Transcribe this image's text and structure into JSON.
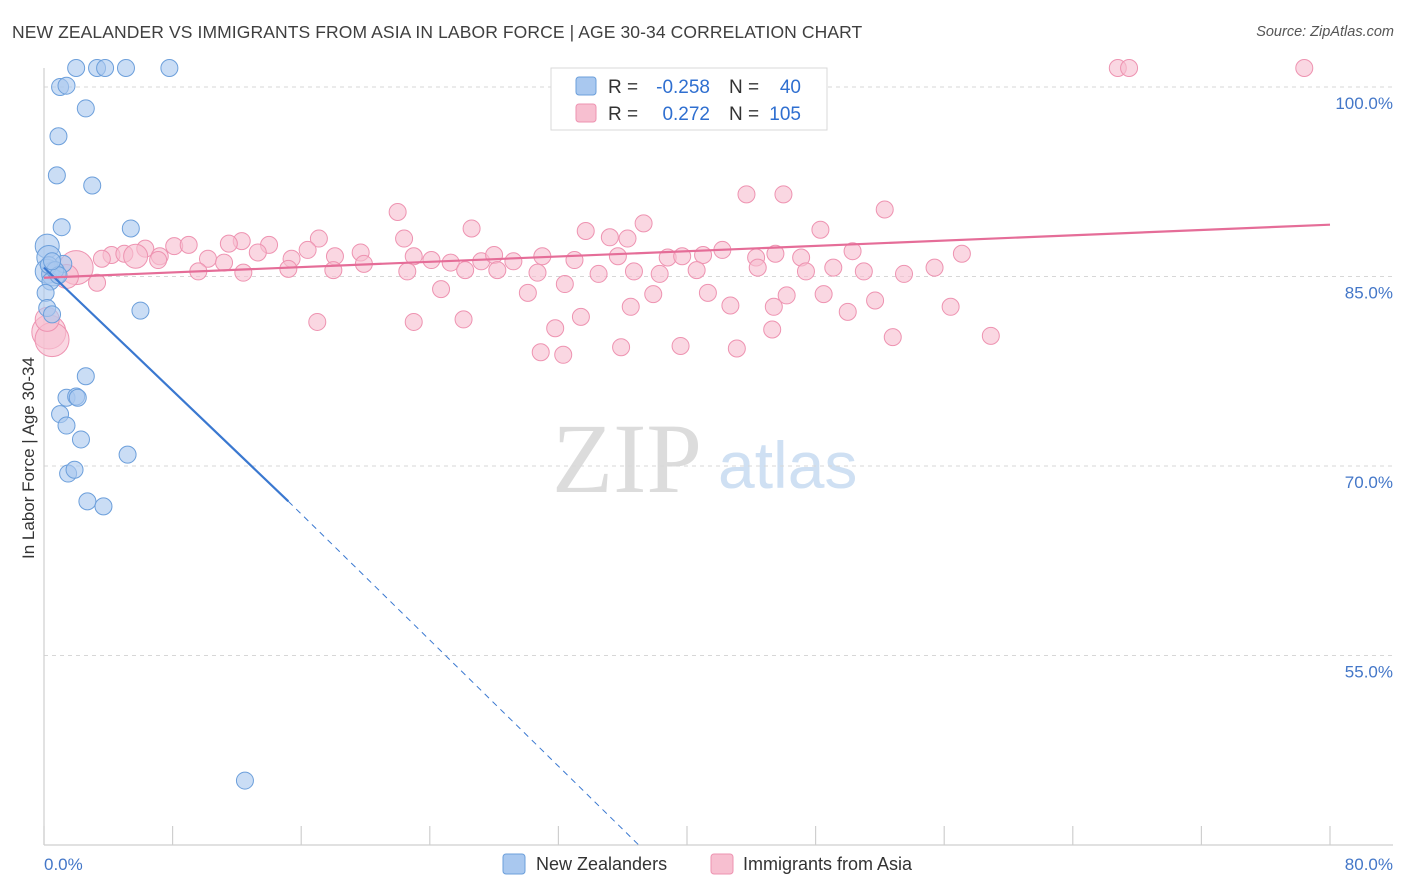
{
  "header": {
    "title": "NEW ZEALANDER VS IMMIGRANTS FROM ASIA IN LABOR FORCE | AGE 30-34 CORRELATION CHART",
    "source": "Source: ZipAtlas.com"
  },
  "watermark": {
    "zip": "ZIP",
    "atlas": "atlas"
  },
  "legend": {
    "rows": [
      {
        "r_label": "R =",
        "r_value": "-0.258",
        "n_label": "N =",
        "n_value": "40"
      },
      {
        "r_label": "R =",
        "r_value": "0.272",
        "n_label": "N =",
        "n_value": "105"
      }
    ]
  },
  "bottom_legend": {
    "series_0": "New Zealanders",
    "series_1": "Immigrants from Asia"
  },
  "colors": {
    "blue_fill": "#a9c8ef",
    "blue_stroke": "#6c9fdb",
    "blue_line": "#3a78d0",
    "pink_fill": "#f7bfd0",
    "pink_stroke": "#ee93b1",
    "pink_line": "#e56d98",
    "grid": "#d7d7d7",
    "tick_label": "#4477c8"
  },
  "chart_data": {
    "type": "scatter",
    "title": "NEW ZEALANDER VS IMMIGRANTS FROM ASIA IN LABOR FORCE | AGE 30-34 CORRELATION CHART",
    "xlabel": "",
    "ylabel": "In Labor Force | Age 30-34",
    "xlim": [
      0,
      80
    ],
    "ylim": [
      40,
      101.5
    ],
    "x_tick_labels": [
      "0.0%",
      "80.0%"
    ],
    "y_ticks": [
      {
        "value": 55,
        "label": "55.0%"
      },
      {
        "value": 70,
        "label": "70.0%"
      },
      {
        "value": 85,
        "label": "85.0%"
      },
      {
        "value": 100,
        "label": "100.0%"
      }
    ],
    "grid": true,
    "legend_position": "top-center",
    "series": [
      {
        "name": "New Zealanders",
        "r": -0.258,
        "n": 40,
        "trend": {
          "x0": 0,
          "y0": 85.7,
          "x1": 15.2,
          "y1": 67.2,
          "dashed_to_x": 37.0,
          "dashed_to_y": 40.0
        },
        "points": [
          {
            "x": 2.0,
            "y": 101.5,
            "s": 1
          },
          {
            "x": 3.3,
            "y": 101.5,
            "s": 1
          },
          {
            "x": 3.8,
            "y": 101.5,
            "s": 1
          },
          {
            "x": 5.1,
            "y": 101.5,
            "s": 1
          },
          {
            "x": 7.8,
            "y": 101.5,
            "s": 1
          },
          {
            "x": 1.0,
            "y": 100.0,
            "s": 1
          },
          {
            "x": 1.4,
            "y": 100.1,
            "s": 1
          },
          {
            "x": 2.6,
            "y": 98.3,
            "s": 1
          },
          {
            "x": 0.9,
            "y": 96.1,
            "s": 1
          },
          {
            "x": 0.8,
            "y": 93.0,
            "s": 1
          },
          {
            "x": 3.0,
            "y": 92.2,
            "s": 1
          },
          {
            "x": 1.1,
            "y": 88.9,
            "s": 1
          },
          {
            "x": 5.4,
            "y": 88.8,
            "s": 1
          },
          {
            "x": 0.2,
            "y": 87.4,
            "s": 2
          },
          {
            "x": 0.3,
            "y": 86.5,
            "s": 2
          },
          {
            "x": 0.2,
            "y": 85.4,
            "s": 2
          },
          {
            "x": 0.6,
            "y": 85.2,
            "s": 2
          },
          {
            "x": 1.2,
            "y": 86.0,
            "s": 1
          },
          {
            "x": 0.4,
            "y": 84.6,
            "s": 1
          },
          {
            "x": 0.1,
            "y": 83.7,
            "s": 1
          },
          {
            "x": 0.2,
            "y": 82.5,
            "s": 1
          },
          {
            "x": 0.5,
            "y": 82.0,
            "s": 1
          },
          {
            "x": 6.0,
            "y": 82.3,
            "s": 1
          },
          {
            "x": 2.6,
            "y": 77.1,
            "s": 1
          },
          {
            "x": 1.4,
            "y": 75.4,
            "s": 1
          },
          {
            "x": 2.0,
            "y": 75.5,
            "s": 1
          },
          {
            "x": 2.1,
            "y": 75.4,
            "s": 1
          },
          {
            "x": 1.0,
            "y": 74.1,
            "s": 1
          },
          {
            "x": 1.4,
            "y": 73.2,
            "s": 1
          },
          {
            "x": 2.3,
            "y": 72.1,
            "s": 1
          },
          {
            "x": 5.2,
            "y": 70.9,
            "s": 1
          },
          {
            "x": 1.5,
            "y": 69.4,
            "s": 1
          },
          {
            "x": 1.9,
            "y": 69.7,
            "s": 1
          },
          {
            "x": 2.7,
            "y": 67.2,
            "s": 1
          },
          {
            "x": 3.7,
            "y": 66.8,
            "s": 1
          },
          {
            "x": 12.5,
            "y": 45.1,
            "s": 1
          },
          {
            "x": 0.3,
            "y": 85.9,
            "s": 1
          },
          {
            "x": 0.7,
            "y": 85.5,
            "s": 1
          },
          {
            "x": 0.9,
            "y": 85.1,
            "s": 1
          },
          {
            "x": 0.5,
            "y": 86.2,
            "s": 1
          }
        ]
      },
      {
        "name": "Immigrants from Asia",
        "r": 0.272,
        "n": 105,
        "trend": {
          "x0": 0,
          "y0": 84.9,
          "x1": 80,
          "y1": 89.1
        },
        "points": [
          {
            "x": 66.8,
            "y": 101.5,
            "s": 1
          },
          {
            "x": 67.5,
            "y": 101.5,
            "s": 1
          },
          {
            "x": 78.4,
            "y": 101.5,
            "s": 1
          },
          {
            "x": 43.7,
            "y": 91.5,
            "s": 1
          },
          {
            "x": 46.0,
            "y": 91.5,
            "s": 1
          },
          {
            "x": 52.3,
            "y": 90.3,
            "s": 1
          },
          {
            "x": 22.0,
            "y": 90.1,
            "s": 1
          },
          {
            "x": 37.3,
            "y": 89.2,
            "s": 1
          },
          {
            "x": 48.3,
            "y": 88.7,
            "s": 1
          },
          {
            "x": 26.6,
            "y": 88.8,
            "s": 1
          },
          {
            "x": 33.7,
            "y": 88.6,
            "s": 1
          },
          {
            "x": 35.2,
            "y": 88.1,
            "s": 1
          },
          {
            "x": 17.1,
            "y": 88.0,
            "s": 1
          },
          {
            "x": 22.4,
            "y": 88.0,
            "s": 1
          },
          {
            "x": 36.3,
            "y": 88.0,
            "s": 1
          },
          {
            "x": 12.3,
            "y": 87.8,
            "s": 1
          },
          {
            "x": 11.5,
            "y": 87.6,
            "s": 1
          },
          {
            "x": 14.0,
            "y": 87.5,
            "s": 1
          },
          {
            "x": 8.1,
            "y": 87.4,
            "s": 1
          },
          {
            "x": 9.0,
            "y": 87.5,
            "s": 1
          },
          {
            "x": 6.3,
            "y": 87.2,
            "s": 1
          },
          {
            "x": 16.4,
            "y": 87.1,
            "s": 1
          },
          {
            "x": 13.3,
            "y": 86.9,
            "s": 1
          },
          {
            "x": 19.7,
            "y": 86.9,
            "s": 1
          },
          {
            "x": 42.2,
            "y": 87.1,
            "s": 1
          },
          {
            "x": 50.3,
            "y": 87.0,
            "s": 1
          },
          {
            "x": 57.1,
            "y": 86.8,
            "s": 1
          },
          {
            "x": 4.2,
            "y": 86.7,
            "s": 1
          },
          {
            "x": 5.0,
            "y": 86.8,
            "s": 1
          },
          {
            "x": 7.2,
            "y": 86.6,
            "s": 1
          },
          {
            "x": 3.6,
            "y": 86.4,
            "s": 1
          },
          {
            "x": 5.7,
            "y": 86.6,
            "s": 2
          },
          {
            "x": 7.1,
            "y": 86.3,
            "s": 1
          },
          {
            "x": 10.2,
            "y": 86.4,
            "s": 1
          },
          {
            "x": 11.2,
            "y": 86.1,
            "s": 1
          },
          {
            "x": 15.4,
            "y": 86.4,
            "s": 1
          },
          {
            "x": 18.1,
            "y": 86.6,
            "s": 1
          },
          {
            "x": 19.9,
            "y": 86.0,
            "s": 1
          },
          {
            "x": 24.1,
            "y": 86.3,
            "s": 1
          },
          {
            "x": 25.3,
            "y": 86.1,
            "s": 1
          },
          {
            "x": 27.2,
            "y": 86.2,
            "s": 1
          },
          {
            "x": 29.2,
            "y": 86.2,
            "s": 1
          },
          {
            "x": 31.0,
            "y": 86.6,
            "s": 1
          },
          {
            "x": 33.0,
            "y": 86.3,
            "s": 1
          },
          {
            "x": 35.7,
            "y": 86.6,
            "s": 1
          },
          {
            "x": 38.8,
            "y": 86.5,
            "s": 1
          },
          {
            "x": 41.0,
            "y": 86.7,
            "s": 1
          },
          {
            "x": 44.3,
            "y": 86.5,
            "s": 1
          },
          {
            "x": 45.5,
            "y": 86.8,
            "s": 1
          },
          {
            "x": 47.1,
            "y": 86.5,
            "s": 1
          },
          {
            "x": 39.7,
            "y": 86.6,
            "s": 1
          },
          {
            "x": 28.0,
            "y": 86.7,
            "s": 1
          },
          {
            "x": 23.0,
            "y": 86.6,
            "s": 1
          },
          {
            "x": 2.0,
            "y": 85.7,
            "s": 3
          },
          {
            "x": 1.4,
            "y": 85.0,
            "s": 2
          },
          {
            "x": 0.5,
            "y": 85.4,
            "s": 1
          },
          {
            "x": 9.6,
            "y": 85.4,
            "s": 1
          },
          {
            "x": 12.4,
            "y": 85.3,
            "s": 1
          },
          {
            "x": 15.2,
            "y": 85.6,
            "s": 1
          },
          {
            "x": 18.0,
            "y": 85.5,
            "s": 1
          },
          {
            "x": 22.6,
            "y": 85.4,
            "s": 1
          },
          {
            "x": 26.2,
            "y": 85.5,
            "s": 1
          },
          {
            "x": 28.2,
            "y": 85.5,
            "s": 1
          },
          {
            "x": 30.7,
            "y": 85.3,
            "s": 1
          },
          {
            "x": 34.5,
            "y": 85.2,
            "s": 1
          },
          {
            "x": 36.7,
            "y": 85.4,
            "s": 1
          },
          {
            "x": 38.3,
            "y": 85.2,
            "s": 1
          },
          {
            "x": 40.6,
            "y": 85.5,
            "s": 1
          },
          {
            "x": 44.4,
            "y": 85.7,
            "s": 1
          },
          {
            "x": 47.4,
            "y": 85.4,
            "s": 1
          },
          {
            "x": 49.1,
            "y": 85.7,
            "s": 1
          },
          {
            "x": 51.0,
            "y": 85.4,
            "s": 1
          },
          {
            "x": 53.5,
            "y": 85.2,
            "s": 1
          },
          {
            "x": 55.4,
            "y": 85.7,
            "s": 1
          },
          {
            "x": 3.3,
            "y": 84.5,
            "s": 1
          },
          {
            "x": 24.7,
            "y": 84.0,
            "s": 1
          },
          {
            "x": 32.4,
            "y": 84.4,
            "s": 1
          },
          {
            "x": 30.1,
            "y": 83.7,
            "s": 1
          },
          {
            "x": 41.3,
            "y": 83.7,
            "s": 1
          },
          {
            "x": 37.9,
            "y": 83.6,
            "s": 1
          },
          {
            "x": 48.5,
            "y": 83.6,
            "s": 1
          },
          {
            "x": 46.2,
            "y": 83.5,
            "s": 1
          },
          {
            "x": 36.5,
            "y": 82.6,
            "s": 1
          },
          {
            "x": 42.7,
            "y": 82.7,
            "s": 1
          },
          {
            "x": 45.4,
            "y": 82.6,
            "s": 1
          },
          {
            "x": 50.0,
            "y": 82.2,
            "s": 1
          },
          {
            "x": 51.7,
            "y": 83.1,
            "s": 1
          },
          {
            "x": 56.4,
            "y": 82.6,
            "s": 1
          },
          {
            "x": 17.0,
            "y": 81.4,
            "s": 1
          },
          {
            "x": 23.0,
            "y": 81.4,
            "s": 1
          },
          {
            "x": 26.1,
            "y": 81.6,
            "s": 1
          },
          {
            "x": 31.8,
            "y": 80.9,
            "s": 1
          },
          {
            "x": 33.4,
            "y": 81.8,
            "s": 1
          },
          {
            "x": 39.6,
            "y": 79.5,
            "s": 1
          },
          {
            "x": 45.3,
            "y": 80.8,
            "s": 1
          },
          {
            "x": 52.8,
            "y": 80.2,
            "s": 1
          },
          {
            "x": 58.9,
            "y": 80.3,
            "s": 1
          },
          {
            "x": 43.1,
            "y": 79.3,
            "s": 1
          },
          {
            "x": 35.9,
            "y": 79.4,
            "s": 1
          },
          {
            "x": 30.9,
            "y": 79.0,
            "s": 1
          },
          {
            "x": 32.3,
            "y": 78.8,
            "s": 1
          },
          {
            "x": 0.3,
            "y": 80.6,
            "s": 3
          },
          {
            "x": 0.5,
            "y": 80.0,
            "s": 3
          },
          {
            "x": 0.2,
            "y": 81.6,
            "s": 2
          }
        ]
      }
    ]
  }
}
